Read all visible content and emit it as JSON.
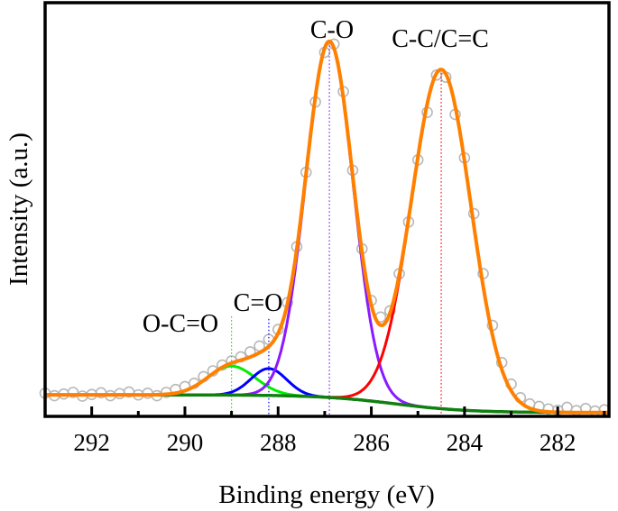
{
  "chart_data": {
    "type": "line",
    "title": "",
    "xlabel": "Binding energy (eV)",
    "ylabel": "Intensity (a.u.)",
    "xlim": [
      293.0,
      280.9
    ],
    "x_reversed": true,
    "ylim": [
      0,
      100
    ],
    "y_ticks_shown": false,
    "grid": false,
    "x_ticks": [
      292,
      290,
      288,
      286,
      284,
      282
    ],
    "x_tick_labels": [
      "292",
      "290",
      "288",
      "286",
      "284",
      "282"
    ],
    "background": {
      "color": "#108010",
      "high_be_level": 5.2,
      "low_be_level": 0.9,
      "midpoint": 285.5,
      "width": 0.8
    },
    "envelope_color": "#ff8000",
    "peaks": [
      {
        "label": "O-C=O",
        "center": 289.0,
        "height": 7,
        "fwhm": 1.2,
        "color": "#00ee00"
      },
      {
        "label": "C=O",
        "center": 288.2,
        "height": 6.5,
        "fwhm": 0.9,
        "color": "#0000ff"
      },
      {
        "label": "C-O",
        "center": 286.9,
        "height": 86,
        "fwhm": 1.2,
        "color": "#8a1aff"
      },
      {
        "label": "C-C/C=C",
        "center": 284.5,
        "height": 82,
        "fwhm": 1.5,
        "color": "#ff0000"
      }
    ],
    "points_color": "#b8b8b8",
    "points": [
      [
        293.0,
        5.6
      ],
      [
        292.8,
        5.0
      ],
      [
        292.6,
        5.4
      ],
      [
        292.4,
        5.8
      ],
      [
        292.2,
        4.9
      ],
      [
        292.0,
        5.3
      ],
      [
        291.8,
        5.7
      ],
      [
        291.6,
        5.0
      ],
      [
        291.4,
        5.5
      ],
      [
        291.2,
        5.9
      ],
      [
        291.0,
        5.2
      ],
      [
        290.8,
        5.6
      ],
      [
        290.6,
        5.0
      ],
      [
        290.4,
        5.8
      ],
      [
        290.2,
        6.5
      ],
      [
        290.0,
        7.2
      ],
      [
        289.8,
        8.0
      ],
      [
        289.6,
        9.6
      ],
      [
        289.4,
        11.0
      ],
      [
        289.2,
        12.4
      ],
      [
        289.0,
        13.4
      ],
      [
        288.8,
        14.4
      ],
      [
        288.6,
        15.6
      ],
      [
        288.4,
        17.0
      ],
      [
        288.2,
        18.6
      ],
      [
        288.0,
        21.0
      ],
      [
        287.8,
        27.5
      ],
      [
        287.6,
        41.0
      ],
      [
        287.4,
        59.0
      ],
      [
        287.2,
        76.0
      ],
      [
        287.0,
        88.0
      ],
      [
        286.8,
        90.0
      ],
      [
        286.6,
        78.5
      ],
      [
        286.4,
        59.5
      ],
      [
        286.2,
        40.5
      ],
      [
        286.0,
        28.0
      ],
      [
        285.8,
        24.0
      ],
      [
        285.6,
        25.5
      ],
      [
        285.4,
        34.5
      ],
      [
        285.2,
        47.0
      ],
      [
        285.0,
        62.0
      ],
      [
        284.8,
        73.5
      ],
      [
        284.6,
        82.5
      ],
      [
        284.4,
        82.0
      ],
      [
        284.2,
        73.0
      ],
      [
        284.0,
        62.5
      ],
      [
        283.8,
        49.0
      ],
      [
        283.6,
        34.5
      ],
      [
        283.4,
        22.0
      ],
      [
        283.2,
        13.0
      ],
      [
        283.0,
        7.8
      ],
      [
        282.8,
        4.5
      ],
      [
        282.6,
        3.0
      ],
      [
        282.4,
        2.4
      ],
      [
        282.2,
        1.8
      ],
      [
        282.0,
        1.5
      ],
      [
        281.8,
        2.2
      ],
      [
        281.6,
        1.4
      ],
      [
        281.4,
        1.9
      ],
      [
        281.2,
        1.3
      ],
      [
        281.0,
        1.6
      ]
    ]
  }
}
